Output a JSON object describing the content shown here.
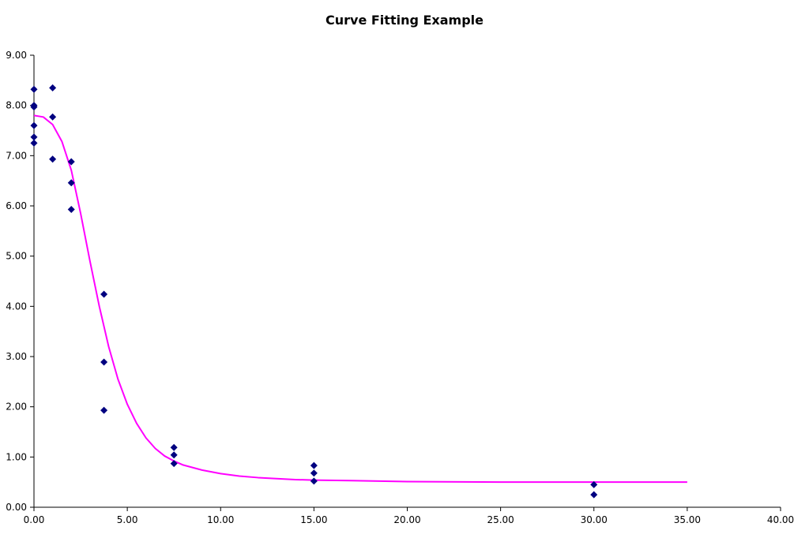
{
  "chart_data": {
    "type": "scatter",
    "title": "Curve Fitting Example",
    "xlabel": "",
    "ylabel": "",
    "xlim": [
      0,
      40
    ],
    "ylim": [
      0,
      9
    ],
    "grid": false,
    "legend": "none",
    "x_ticks": [
      "0.00",
      "5.00",
      "10.00",
      "15.00",
      "20.00",
      "25.00",
      "30.00",
      "35.00",
      "40.00"
    ],
    "y_ticks": [
      "0.00",
      "1.00",
      "2.00",
      "3.00",
      "4.00",
      "5.00",
      "6.00",
      "7.00",
      "8.00",
      "9.00"
    ],
    "series": [
      {
        "type": "scatter",
        "color": "#000080",
        "marker": "diamond",
        "points": [
          [
            0,
            8.32
          ],
          [
            0,
            8.0
          ],
          [
            0,
            7.97
          ],
          [
            0,
            7.6
          ],
          [
            0,
            7.37
          ],
          [
            0,
            7.25
          ],
          [
            1,
            8.35
          ],
          [
            1,
            7.77
          ],
          [
            1,
            6.93
          ],
          [
            2,
            6.88
          ],
          [
            2,
            6.46
          ],
          [
            2,
            5.93
          ],
          [
            3.75,
            4.24
          ],
          [
            3.75,
            2.89
          ],
          [
            3.75,
            1.93
          ],
          [
            7.5,
            1.19
          ],
          [
            7.5,
            1.04
          ],
          [
            7.5,
            0.87
          ],
          [
            15,
            0.83
          ],
          [
            15,
            0.68
          ],
          [
            15,
            0.52
          ],
          [
            30,
            0.45
          ],
          [
            30,
            0.25
          ]
        ]
      },
      {
        "type": "line",
        "color": "#ff00ff",
        "points": [
          [
            0,
            7.8
          ],
          [
            0.5,
            7.77
          ],
          [
            1,
            7.62
          ],
          [
            1.5,
            7.28
          ],
          [
            2,
            6.71
          ],
          [
            2.5,
            5.85
          ],
          [
            3,
            4.9
          ],
          [
            3.5,
            4.0
          ],
          [
            4,
            3.2
          ],
          [
            4.5,
            2.55
          ],
          [
            5,
            2.05
          ],
          [
            5.5,
            1.67
          ],
          [
            6,
            1.38
          ],
          [
            6.5,
            1.17
          ],
          [
            7,
            1.02
          ],
          [
            7.5,
            0.92
          ],
          [
            8,
            0.84
          ],
          [
            9,
            0.74
          ],
          [
            10,
            0.67
          ],
          [
            11,
            0.62
          ],
          [
            12,
            0.59
          ],
          [
            13,
            0.57
          ],
          [
            14,
            0.55
          ],
          [
            15,
            0.54
          ],
          [
            17,
            0.53
          ],
          [
            20,
            0.51
          ],
          [
            25,
            0.5
          ],
          [
            30,
            0.5
          ],
          [
            35,
            0.5
          ]
        ]
      }
    ]
  }
}
